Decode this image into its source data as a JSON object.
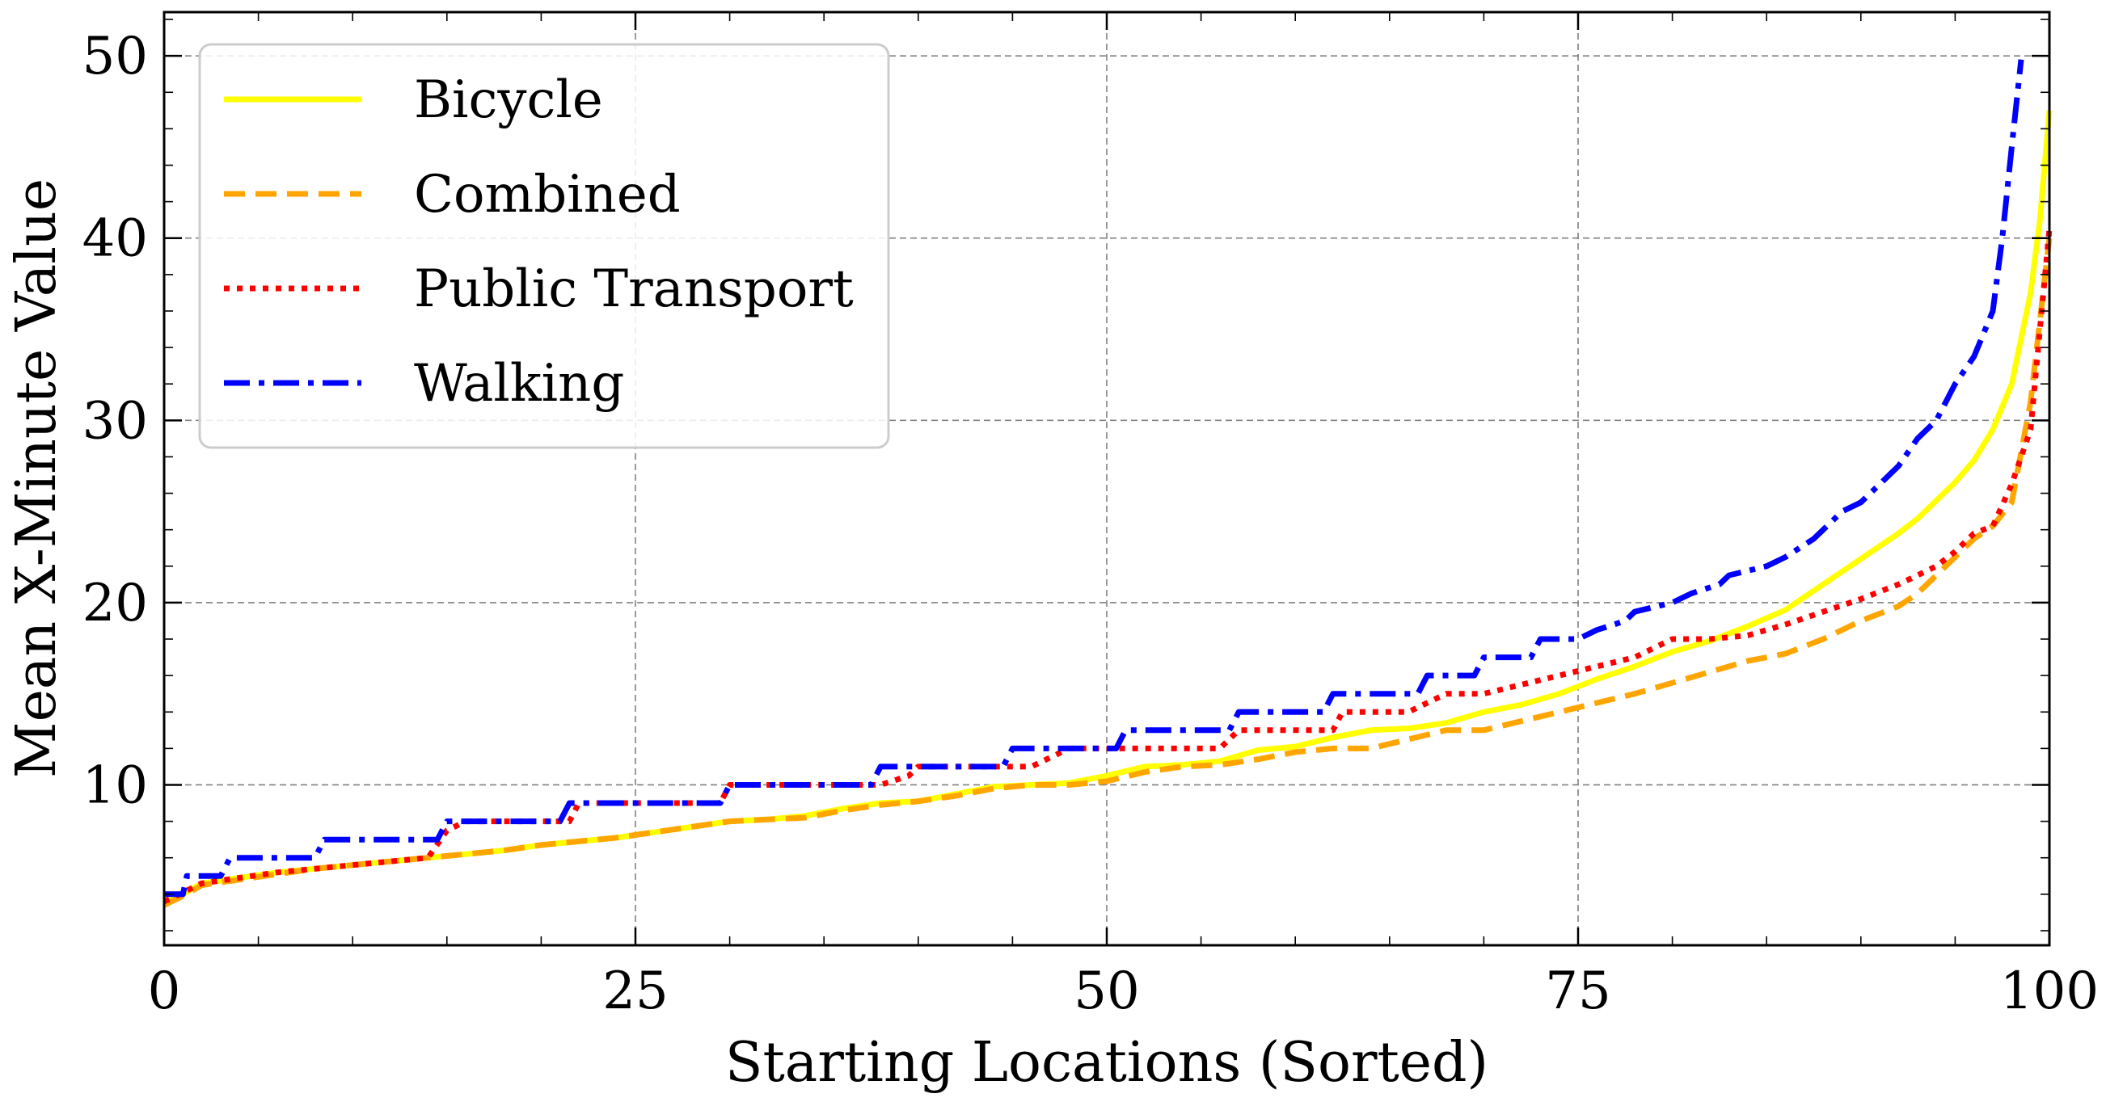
{
  "chart_data": {
    "type": "line",
    "title": "",
    "xlabel": "Starting Locations (Sorted)",
    "ylabel": "Mean X-Minute Value",
    "xlim": [
      0,
      100
    ],
    "ylim": [
      1.2,
      52.4
    ],
    "xticks": [
      0,
      25,
      50,
      75,
      100
    ],
    "yticks": [
      10,
      20,
      30,
      40,
      50
    ],
    "grid": true,
    "legend_position": "top-left",
    "series": [
      {
        "name": "Bicycle",
        "color": "#ffff00",
        "style": "solid",
        "x": [
          0,
          1,
          2,
          4,
          6,
          8,
          10,
          12,
          14,
          16,
          18,
          20,
          22,
          24,
          26,
          28,
          30,
          32,
          34,
          36,
          38,
          40,
          42,
          44,
          46,
          48,
          50,
          52,
          54,
          56,
          58,
          60,
          62,
          64,
          66,
          68,
          70,
          72,
          74,
          76,
          78,
          80,
          82,
          84,
          86,
          88,
          90,
          92,
          93,
          94,
          95,
          96,
          97,
          98,
          99,
          99.5,
          100
        ],
        "values": [
          3.6,
          4.0,
          4.6,
          4.9,
          5.2,
          5.4,
          5.6,
          5.8,
          6.0,
          6.2,
          6.4,
          6.7,
          6.9,
          7.1,
          7.4,
          7.7,
          8.0,
          8.1,
          8.3,
          8.7,
          9.0,
          9.1,
          9.5,
          9.9,
          10.0,
          10.1,
          10.5,
          11.0,
          11.1,
          11.3,
          11.9,
          12.1,
          12.6,
          13.0,
          13.1,
          13.4,
          14.0,
          14.4,
          15.0,
          15.8,
          16.5,
          17.3,
          17.9,
          18.7,
          19.6,
          21.0,
          22.4,
          23.8,
          24.6,
          25.6,
          26.6,
          27.8,
          29.5,
          32.0,
          37.0,
          41.0,
          47.0
        ]
      },
      {
        "name": "Combined",
        "color": "#ffa500",
        "style": "dashed",
        "x": [
          0,
          1,
          2,
          4,
          6,
          8,
          10,
          12,
          14,
          16,
          18,
          20,
          22,
          24,
          26,
          28,
          30,
          32,
          34,
          36,
          38,
          40,
          42,
          44,
          46,
          48,
          50,
          52,
          54,
          56,
          58,
          60,
          62,
          64,
          66,
          68,
          70,
          72,
          74,
          76,
          78,
          80,
          82,
          84,
          86,
          88,
          90,
          92,
          93,
          94,
          95,
          96,
          97,
          98,
          99,
          99.5,
          100
        ],
        "values": [
          3.4,
          3.9,
          4.5,
          4.8,
          5.1,
          5.4,
          5.6,
          5.8,
          6.0,
          6.2,
          6.4,
          6.7,
          6.9,
          7.1,
          7.4,
          7.7,
          8.0,
          8.1,
          8.2,
          8.6,
          8.9,
          9.1,
          9.4,
          9.8,
          10.0,
          10.0,
          10.2,
          10.7,
          11.0,
          11.1,
          11.4,
          11.8,
          12.0,
          12.0,
          12.5,
          13.0,
          13.0,
          13.5,
          14.0,
          14.5,
          15.0,
          15.6,
          16.2,
          16.8,
          17.2,
          18.0,
          19.0,
          19.8,
          20.5,
          21.5,
          22.5,
          23.5,
          24.2,
          25.5,
          31.0,
          35.5,
          40.0
        ]
      },
      {
        "name": "Public Transport",
        "color": "#ff0000",
        "style": "dotted",
        "x": [
          0,
          1,
          2,
          4,
          6,
          8,
          10,
          12,
          14,
          15,
          16,
          18,
          20,
          21.5,
          22,
          24,
          26,
          28,
          29.5,
          30,
          34,
          38,
          39.5,
          40,
          42,
          44,
          46,
          48,
          50,
          52,
          54,
          56,
          57,
          58,
          60,
          62,
          62.5,
          64,
          66,
          68,
          70,
          72,
          74,
          76,
          78,
          80,
          82,
          84,
          86,
          88,
          90,
          92,
          93,
          94,
          95,
          96,
          97,
          98,
          99,
          99.5,
          100
        ],
        "values": [
          3.6,
          4.1,
          4.6,
          4.9,
          5.2,
          5.4,
          5.6,
          5.8,
          6.0,
          7.5,
          8.0,
          8.0,
          8.0,
          8.0,
          9.0,
          9.0,
          9.0,
          9.0,
          9.0,
          10.0,
          10.0,
          10.0,
          10.5,
          11.0,
          11.0,
          11.0,
          11.0,
          12.0,
          12.0,
          12.0,
          12.0,
          12.0,
          13.0,
          13.0,
          13.0,
          13.0,
          14.0,
          14.0,
          14.0,
          15.0,
          15.0,
          15.5,
          16.0,
          16.5,
          17.0,
          18.0,
          18.0,
          18.2,
          18.8,
          19.5,
          20.2,
          21.0,
          21.5,
          22.0,
          22.8,
          23.8,
          24.2,
          26.5,
          29.5,
          35.0,
          40.5
        ]
      },
      {
        "name": "Walking",
        "color": "#0000ff",
        "style": "dashdot",
        "x": [
          0,
          1,
          1.2,
          3,
          3.5,
          8,
          8.5,
          14.5,
          15,
          21,
          21.5,
          29.5,
          30,
          37.5,
          38,
          44.5,
          45,
          50.5,
          51,
          56.5,
          57,
          61.5,
          62,
          66.5,
          67,
          69.5,
          70,
          72.5,
          73,
          75,
          76,
          77.5,
          78,
          80,
          81,
          82.5,
          83,
          85,
          86,
          87.5,
          88,
          89,
          90,
          91,
          92,
          93,
          94,
          95,
          96,
          97,
          97.5,
          98,
          98.5
        ],
        "values": [
          4.0,
          4.0,
          5.0,
          5.0,
          6.0,
          6.0,
          7.0,
          7.0,
          8.0,
          8.0,
          9.0,
          9.0,
          10.0,
          10.0,
          11.0,
          11.0,
          12.0,
          12.0,
          13.0,
          13.0,
          14.0,
          14.0,
          15.0,
          15.0,
          16.0,
          16.0,
          17.0,
          17.0,
          18.0,
          18.0,
          18.5,
          19.0,
          19.5,
          20.0,
          20.5,
          21.0,
          21.5,
          22.0,
          22.5,
          23.5,
          24.0,
          25.0,
          25.5,
          26.5,
          27.5,
          29.0,
          30.0,
          32.0,
          33.5,
          36.0,
          40.0,
          45.0,
          49.8
        ]
      }
    ]
  }
}
